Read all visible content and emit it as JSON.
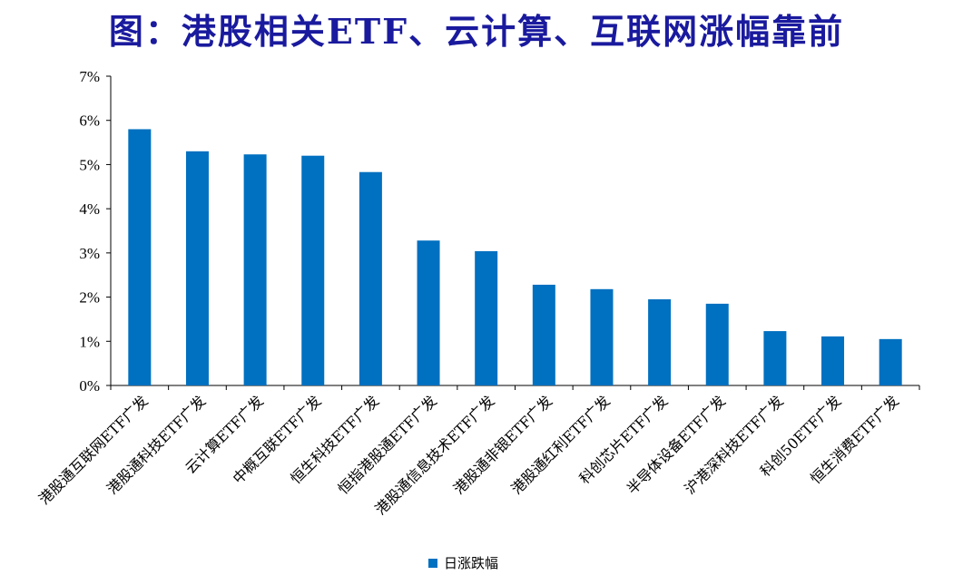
{
  "header": {
    "title": "图：港股相关ETF、云计算、互联网涨幅靠前"
  },
  "chart_data": {
    "type": "bar",
    "categories": [
      "港股通互联网ETF广发",
      "港股通科技ETF广发",
      "云计算ETF广发",
      "中概互联ETF广发",
      "恒生科技ETF广发",
      "恒指港股通ETF广发",
      "港股通信息技术ETF广发",
      "港股通非银ETF广发",
      "港股通红利ETF广发",
      "科创芯片ETF广发",
      "半导体设备ETF广发",
      "沪港深科技ETF广发",
      "科创50ETF广发",
      "恒生消费ETF广发"
    ],
    "series": [
      {
        "name": "日涨跌幅",
        "values": [
          5.8,
          5.3,
          5.23,
          5.2,
          4.83,
          3.28,
          3.04,
          2.28,
          2.18,
          1.95,
          1.85,
          1.23,
          1.11,
          1.05
        ]
      }
    ],
    "ylim": [
      0,
      7
    ],
    "yticks": [
      "0%",
      "1%",
      "2%",
      "3%",
      "4%",
      "5%",
      "6%",
      "7%"
    ],
    "color": "#0070c0",
    "legend_position": "bottom",
    "grid": false
  }
}
